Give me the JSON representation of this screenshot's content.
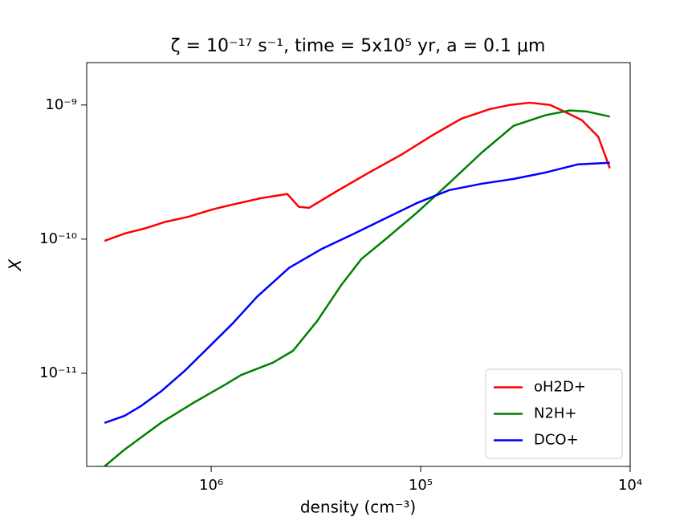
{
  "chart_data": {
    "type": "line",
    "title": "ζ = 10⁻¹⁷ s⁻¹, time = 5x10⁵ yr,  a = 0.1 μm",
    "xlabel": "density (cm⁻³)",
    "ylabel": "X",
    "xscale": "log",
    "yscale": "log",
    "xlim": [
      3930000,
      10000
    ],
    "ylim": [
      2.02e-12,
      2.07e-09
    ],
    "xticks": [
      {
        "value": 1000000,
        "label": "10⁶"
      },
      {
        "value": 100000,
        "label": "10⁵"
      },
      {
        "value": 10000,
        "label": "10⁴"
      }
    ],
    "yticks": [
      {
        "value": 1e-11,
        "label": "10⁻¹¹"
      },
      {
        "value": 1e-10,
        "label": "10⁻¹⁰"
      },
      {
        "value": 1e-09,
        "label": "10⁻⁹"
      }
    ],
    "legend": "lower right",
    "series": [
      {
        "name": "oH2D+",
        "color": "#ff0000",
        "x": [
          3230000,
          2590000,
          2080000,
          1670000,
          1280000,
          980000,
          790000,
          579000,
          433000,
          382000,
          341000,
          250000,
          176000,
          124000,
          87000,
          64000,
          47000,
          37600,
          30100,
          24100,
          20200,
          17000,
          14200,
          12500
        ],
        "values": [
          9.7e-11,
          1.1e-10,
          1.2e-10,
          1.34e-10,
          1.47e-10,
          1.67e-10,
          1.81e-10,
          2.02e-10,
          2.17e-10,
          1.74e-10,
          1.71e-10,
          2.29e-10,
          3.14e-10,
          4.25e-10,
          6e-10,
          7.9e-10,
          9.3e-10,
          1e-09,
          1.04e-09,
          1e-09,
          8.8e-10,
          7.7e-10,
          5.8e-10,
          3.37e-10
        ]
      },
      {
        "name": "N2H+",
        "color": "#008000",
        "x": [
          3230000,
          2590000,
          1740000,
          1220000,
          860000,
          720000,
          507000,
          407000,
          312000,
          239000,
          192000,
          147000,
          104000,
          73000,
          51000,
          36000,
          25300,
          19400,
          16200,
          12500
        ],
        "values": [
          2.02e-12,
          2.7e-12,
          4.26e-12,
          6e-12,
          8.2e-12,
          9.7e-12,
          1.2e-11,
          1.47e-11,
          2.45e-11,
          4.56e-11,
          7.1e-11,
          1e-10,
          1.58e-10,
          2.62e-10,
          4.43e-10,
          7e-10,
          8.4e-10,
          9.1e-10,
          8.95e-10,
          8.2e-10
        ]
      },
      {
        "name": "DCO+",
        "color": "#0000ff",
        "x": [
          3230000,
          2590000,
          2170000,
          1740000,
          1340000,
          1030000,
          790000,
          605000,
          425000,
          299000,
          210000,
          147000,
          104000,
          73000,
          51000,
          36000,
          25300,
          17700,
          14900,
          12500
        ],
        "values": [
          4.26e-12,
          4.82e-12,
          5.68e-12,
          7.3e-12,
          1.04e-11,
          1.56e-11,
          2.35e-11,
          3.71e-11,
          6.1e-11,
          8.4e-11,
          1.09e-10,
          1.43e-10,
          1.86e-10,
          2.32e-10,
          2.59e-10,
          2.81e-10,
          3.14e-10,
          3.61e-10,
          3.66e-10,
          3.71e-10
        ]
      }
    ]
  }
}
